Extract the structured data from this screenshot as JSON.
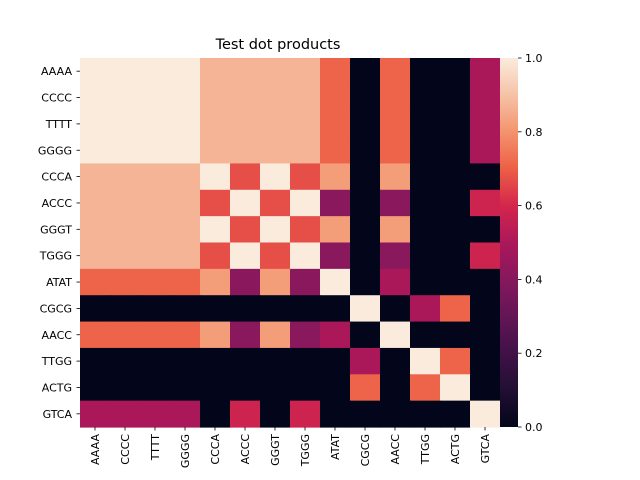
{
  "chart_data": {
    "type": "heatmap",
    "title": "Test dot products",
    "xlabel": "",
    "ylabel": "",
    "x_labels": [
      "AAAA",
      "CCCC",
      "TTTT",
      "GGGG",
      "CCCA",
      "ACCC",
      "GGGT",
      "TGGG",
      "ATAT",
      "CGCG",
      "AACC",
      "TTGG",
      "ACTG",
      "GTCA"
    ],
    "y_labels": [
      "AAAA",
      "CCCC",
      "TTTT",
      "GGGG",
      "CCCA",
      "ACCC",
      "GGGT",
      "TGGG",
      "ATAT",
      "CGCG",
      "AACC",
      "TTGG",
      "ACTG",
      "GTCA"
    ],
    "values": [
      [
        1.0,
        1.0,
        1.0,
        1.0,
        0.87,
        0.87,
        0.87,
        0.87,
        0.71,
        0.0,
        0.71,
        0.0,
        0.0,
        0.5
      ],
      [
        1.0,
        1.0,
        1.0,
        1.0,
        0.87,
        0.87,
        0.87,
        0.87,
        0.71,
        0.0,
        0.71,
        0.0,
        0.0,
        0.5
      ],
      [
        1.0,
        1.0,
        1.0,
        1.0,
        0.87,
        0.87,
        0.87,
        0.87,
        0.71,
        0.0,
        0.71,
        0.0,
        0.0,
        0.5
      ],
      [
        1.0,
        1.0,
        1.0,
        1.0,
        0.87,
        0.87,
        0.87,
        0.87,
        0.71,
        0.0,
        0.71,
        0.0,
        0.0,
        0.5
      ],
      [
        0.87,
        0.87,
        0.87,
        0.87,
        1.0,
        0.67,
        1.0,
        0.67,
        0.82,
        0.0,
        0.82,
        0.0,
        0.0,
        0.0
      ],
      [
        0.87,
        0.87,
        0.87,
        0.87,
        0.67,
        1.0,
        0.67,
        1.0,
        0.41,
        0.0,
        0.41,
        0.0,
        0.0,
        0.58
      ],
      [
        0.87,
        0.87,
        0.87,
        0.87,
        1.0,
        0.67,
        1.0,
        0.67,
        0.82,
        0.0,
        0.82,
        0.0,
        0.0,
        0.0
      ],
      [
        0.87,
        0.87,
        0.87,
        0.87,
        0.67,
        1.0,
        0.67,
        1.0,
        0.41,
        0.0,
        0.41,
        0.0,
        0.0,
        0.58
      ],
      [
        0.71,
        0.71,
        0.71,
        0.71,
        0.82,
        0.41,
        0.82,
        0.41,
        1.0,
        0.0,
        0.5,
        0.0,
        0.0,
        0.0
      ],
      [
        0.0,
        0.0,
        0.0,
        0.0,
        0.0,
        0.0,
        0.0,
        0.0,
        0.0,
        1.0,
        0.0,
        0.5,
        0.71,
        0.0
      ],
      [
        0.71,
        0.71,
        0.71,
        0.71,
        0.82,
        0.41,
        0.82,
        0.41,
        0.5,
        0.0,
        1.0,
        0.0,
        0.0,
        0.0
      ],
      [
        0.0,
        0.0,
        0.0,
        0.0,
        0.0,
        0.0,
        0.0,
        0.0,
        0.0,
        0.5,
        0.0,
        1.0,
        0.71,
        0.0
      ],
      [
        0.0,
        0.0,
        0.0,
        0.0,
        0.0,
        0.0,
        0.0,
        0.0,
        0.0,
        0.71,
        0.0,
        0.71,
        1.0,
        0.0
      ],
      [
        0.5,
        0.5,
        0.5,
        0.5,
        0.0,
        0.58,
        0.0,
        0.58,
        0.0,
        0.0,
        0.0,
        0.0,
        0.0,
        1.0
      ]
    ],
    "colorbar": {
      "min": 0.0,
      "max": 1.0,
      "ticks": [
        "0.0",
        "0.2",
        "0.4",
        "0.6",
        "0.8",
        "1.0"
      ],
      "colormap": "rocket"
    },
    "grid": false,
    "legend": "colorbar-right"
  }
}
